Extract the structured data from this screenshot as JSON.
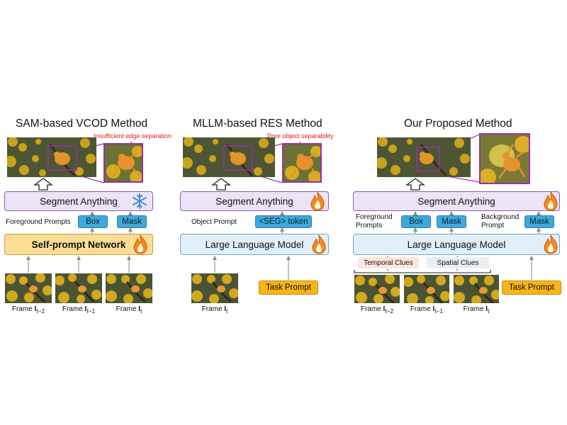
{
  "panels": {
    "left": {
      "title": "SAM-based VCOD Method",
      "warning": "Insufficient edge separation",
      "segment": "Segment Anything",
      "prompts_label": "Foreground Prompts",
      "box": "Box",
      "mask": "Mask",
      "network": "Self-prompt Network",
      "frames": [
        {
          "prefix": "Frame ",
          "sub": "t−2"
        },
        {
          "prefix": "Frame ",
          "sub": "t−1"
        },
        {
          "prefix": "Frame ",
          "sub": "t"
        }
      ],
      "segment_icon": "snowflake-icon",
      "network_icon": "flame-icon"
    },
    "middle": {
      "title": "MLLM-based RES Method",
      "warning": "Poor object separability",
      "segment": "Segment Anything",
      "prompt_label": "Object Prompt",
      "seg_token": "<SEG> token",
      "llm": "Large Language Model",
      "frame": {
        "prefix": "Frame ",
        "sub": "t"
      },
      "task": "Task Prompt",
      "segment_icon": "flame-icon",
      "llm_icon": "flame-icon"
    },
    "right": {
      "title": "Our Proposed Method",
      "segment": "Segment Anything",
      "fg_label": "Foreground\nPrompts",
      "bg_label": "Background\nPrompt",
      "box": "Box",
      "mask": "Mask",
      "mask2": "Mask",
      "llm": "Large Language Model",
      "temporal": "Temporal Clues",
      "spatial": "Spatial Clues",
      "frames": [
        {
          "prefix": "Frame ",
          "sub": "t−2"
        },
        {
          "prefix": "Frame ",
          "sub": "t−1"
        },
        {
          "prefix": "Frame ",
          "sub": "t"
        }
      ],
      "task": "Task Prompt",
      "segment_icon": "flame-icon",
      "llm_icon": "flame-icon"
    }
  },
  "colors": {
    "sam_fill": "#ece3f4",
    "llm_fill": "#e2eff8",
    "network_fill": "#fbdd96",
    "tag_fill": "#3ea9d9",
    "task_fill": "#f8b418",
    "warning": "#e0201c",
    "zoom_border": "#9a2fa8"
  }
}
